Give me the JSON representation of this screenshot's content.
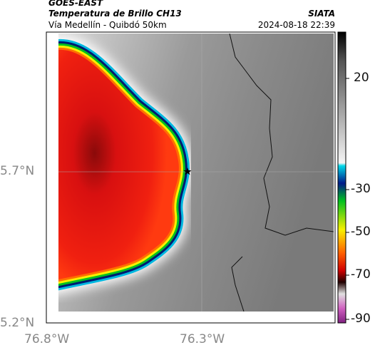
{
  "header": {
    "source": "GOES-EAST",
    "title": "Temperatura de Brillo CH13",
    "subtitle": "Vía Medellín - Quibdó 50km",
    "agency": "SIATA",
    "timestamp": "2024-08-18 22:39"
  },
  "map": {
    "lat_labels": [
      "5.7°N",
      "5.2°N"
    ],
    "lon_labels": [
      "76.8°W",
      "76.3°W"
    ]
  },
  "colorbar": {
    "labels": [
      "20",
      "-30",
      "-50",
      "-70",
      "-90"
    ]
  }
}
